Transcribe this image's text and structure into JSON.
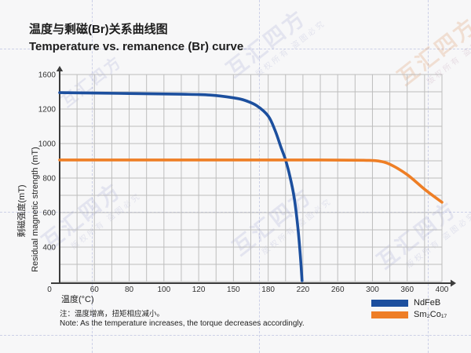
{
  "title": {
    "zh": "温度与剩磁(Br)关系曲线图",
    "en": "Temperature vs. remanence (Br) curve"
  },
  "chart_data": {
    "type": "line",
    "title_zh": "温度与剩磁(Br)关系曲线图",
    "title_en": "Temperature vs. remanence (Br) curve",
    "xlabel": "温度(°C)",
    "ylabel_zh": "剩磁强度(mT)",
    "ylabel_en": "Residual magnetic strength (mT)",
    "grid": true,
    "legend_position": "bottom-right",
    "x_ticks": [
      0,
      60,
      80,
      100,
      120,
      150,
      180,
      220,
      260,
      300,
      360,
      400
    ],
    "x_tick_labels": [
      "0",
      "60",
      "80",
      "100",
      "120",
      "150",
      "180",
      "220",
      "260",
      "300",
      "360",
      "400"
    ],
    "y_tick_rows": [
      {
        "label": "1600",
        "row": 0
      },
      {
        "label": "1200",
        "row": 2
      },
      {
        "label": "1000",
        "row": 4
      },
      {
        "label": "800",
        "row": 6
      },
      {
        "label": "600",
        "row": 8
      },
      {
        "label": "400",
        "row": 10
      }
    ],
    "y_axis_note": "gridlines every 100 mT below 1200; top label 1600 sits two gridlines above 1200",
    "series": [
      {
        "name": "NdFeB",
        "color": "#1c4f9e",
        "points": [
          [
            0,
            1390
          ],
          [
            40,
            1387
          ],
          [
            80,
            1380
          ],
          [
            110,
            1372
          ],
          [
            130,
            1362
          ],
          [
            150,
            1330
          ],
          [
            160,
            1300
          ],
          [
            170,
            1240
          ],
          [
            180,
            1160
          ],
          [
            188,
            1075
          ],
          [
            195,
            975
          ],
          [
            200,
            905
          ],
          [
            205,
            810
          ],
          [
            210,
            685
          ],
          [
            214,
            520
          ],
          [
            217,
            350
          ],
          [
            219,
            205
          ]
        ]
      },
      {
        "name": "Sm₂Co₁₇",
        "color": "#ee7e25",
        "points": [
          [
            0,
            905
          ],
          [
            80,
            905
          ],
          [
            160,
            905
          ],
          [
            240,
            905
          ],
          [
            290,
            903
          ],
          [
            310,
            899
          ],
          [
            330,
            880
          ],
          [
            360,
            820
          ],
          [
            380,
            735
          ],
          [
            400,
            660
          ]
        ]
      }
    ]
  },
  "legend": {
    "items": [
      {
        "label": "NdFeB",
        "color": "#1c4f9e"
      },
      {
        "label": "Sm₂Co₁₇",
        "color": "#ee7e25"
      }
    ]
  },
  "notes": {
    "zh": "注：温度增高，扭矩相应减小。",
    "en": "Note: As the temperature increases, the torque decreases accordingly."
  },
  "watermark": {
    "brand": "互汇四方",
    "slogan": "版权所有 盗图必究"
  },
  "colors": {
    "background": "#f7f7f8",
    "grid": "#bdbdbd",
    "axis": "#3c3c3c",
    "text": "#1d1d1d"
  }
}
